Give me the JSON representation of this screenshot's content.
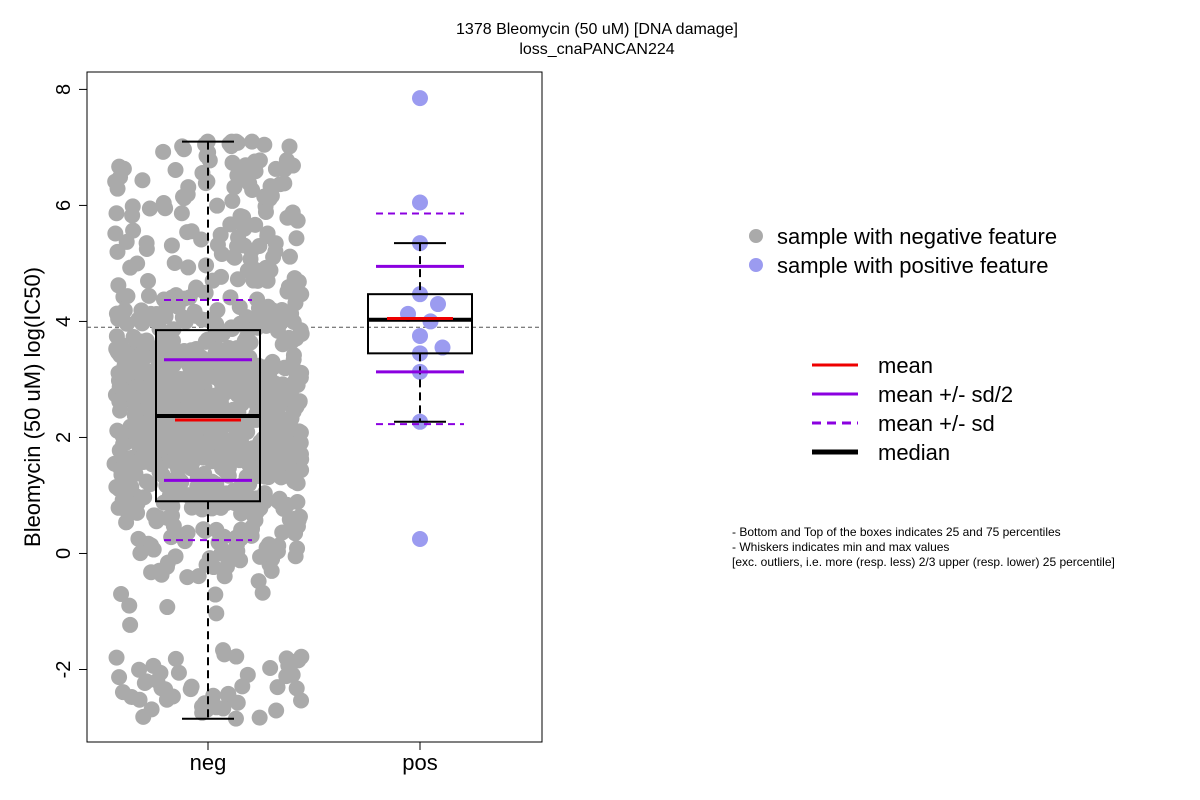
{
  "chart_data": {
    "type": "boxplot",
    "title": "1378 Bleomycin (50 uM) [DNA damage]",
    "subtitle": "loss_cnaPANCAN224",
    "ylabel": "Bleomycin (50 uM) log(IC50)",
    "xlabel": "",
    "categories": [
      "neg",
      "pos"
    ],
    "ylim": [
      -3.25,
      8.3
    ],
    "yticks": [
      -2,
      0,
      2,
      4,
      6,
      8
    ],
    "reference_line_y": 3.9,
    "colors": {
      "neg_points": "#aaaaaa",
      "pos_points": "#9b9bf0",
      "mean": "#ee0000",
      "sd": "#8b00e0",
      "median": "#000000",
      "reference": "#555555"
    },
    "groups": [
      {
        "name": "neg",
        "q1": 0.9,
        "median": 2.37,
        "q3": 3.85,
        "whisker_low": -2.85,
        "whisker_high": 7.1,
        "mean": 2.3,
        "mean_minus_half_sd": 1.26,
        "mean_plus_half_sd": 3.34,
        "mean_minus_sd": 0.23,
        "mean_plus_sd": 4.37,
        "n_points": 900
      },
      {
        "name": "pos",
        "q1": 3.45,
        "median": 4.03,
        "q3": 4.47,
        "whisker_low": 2.27,
        "whisker_high": 5.35,
        "mean": 4.05,
        "mean_minus_half_sd": 3.13,
        "mean_plus_half_sd": 4.95,
        "mean_minus_sd": 2.23,
        "mean_plus_sd": 5.86,
        "points": [
          {
            "x": 0.0,
            "y": 7.85
          },
          {
            "x": 0.0,
            "y": 6.05
          },
          {
            "x": 0.0,
            "y": 5.35
          },
          {
            "x": 0.0,
            "y": 4.47
          },
          {
            "x": 0.12,
            "y": 4.3
          },
          {
            "x": -0.08,
            "y": 4.13
          },
          {
            "x": 0.07,
            "y": 4.0
          },
          {
            "x": 0.0,
            "y": 3.75
          },
          {
            "x": 0.15,
            "y": 3.55
          },
          {
            "x": 0.0,
            "y": 3.45
          },
          {
            "x": 0.0,
            "y": 3.13
          },
          {
            "x": 0.0,
            "y": 2.27
          },
          {
            "x": 0.0,
            "y": 0.25
          }
        ]
      }
    ],
    "legend_points": [
      {
        "label": "sample with negative feature",
        "color": "#aaaaaa"
      },
      {
        "label": "sample with positive feature",
        "color": "#9b9bf0"
      }
    ],
    "legend_lines": [
      {
        "label": "mean",
        "color": "#ee0000",
        "style": "solid"
      },
      {
        "label": "mean +/- sd/2",
        "color": "#8b00e0",
        "style": "solid"
      },
      {
        "label": "mean +/- sd",
        "color": "#8b00e0",
        "style": "dashed"
      },
      {
        "label": "median",
        "color": "#000000",
        "style": "solid-bold"
      }
    ],
    "notes": [
      "- Bottom and Top of the boxes indicates 25 and 75 percentiles",
      "- Whiskers indicates min and max values",
      "[exc. outliers, i.e. more (resp. less) 2/3 upper (resp. lower) 25 percentile]"
    ]
  }
}
